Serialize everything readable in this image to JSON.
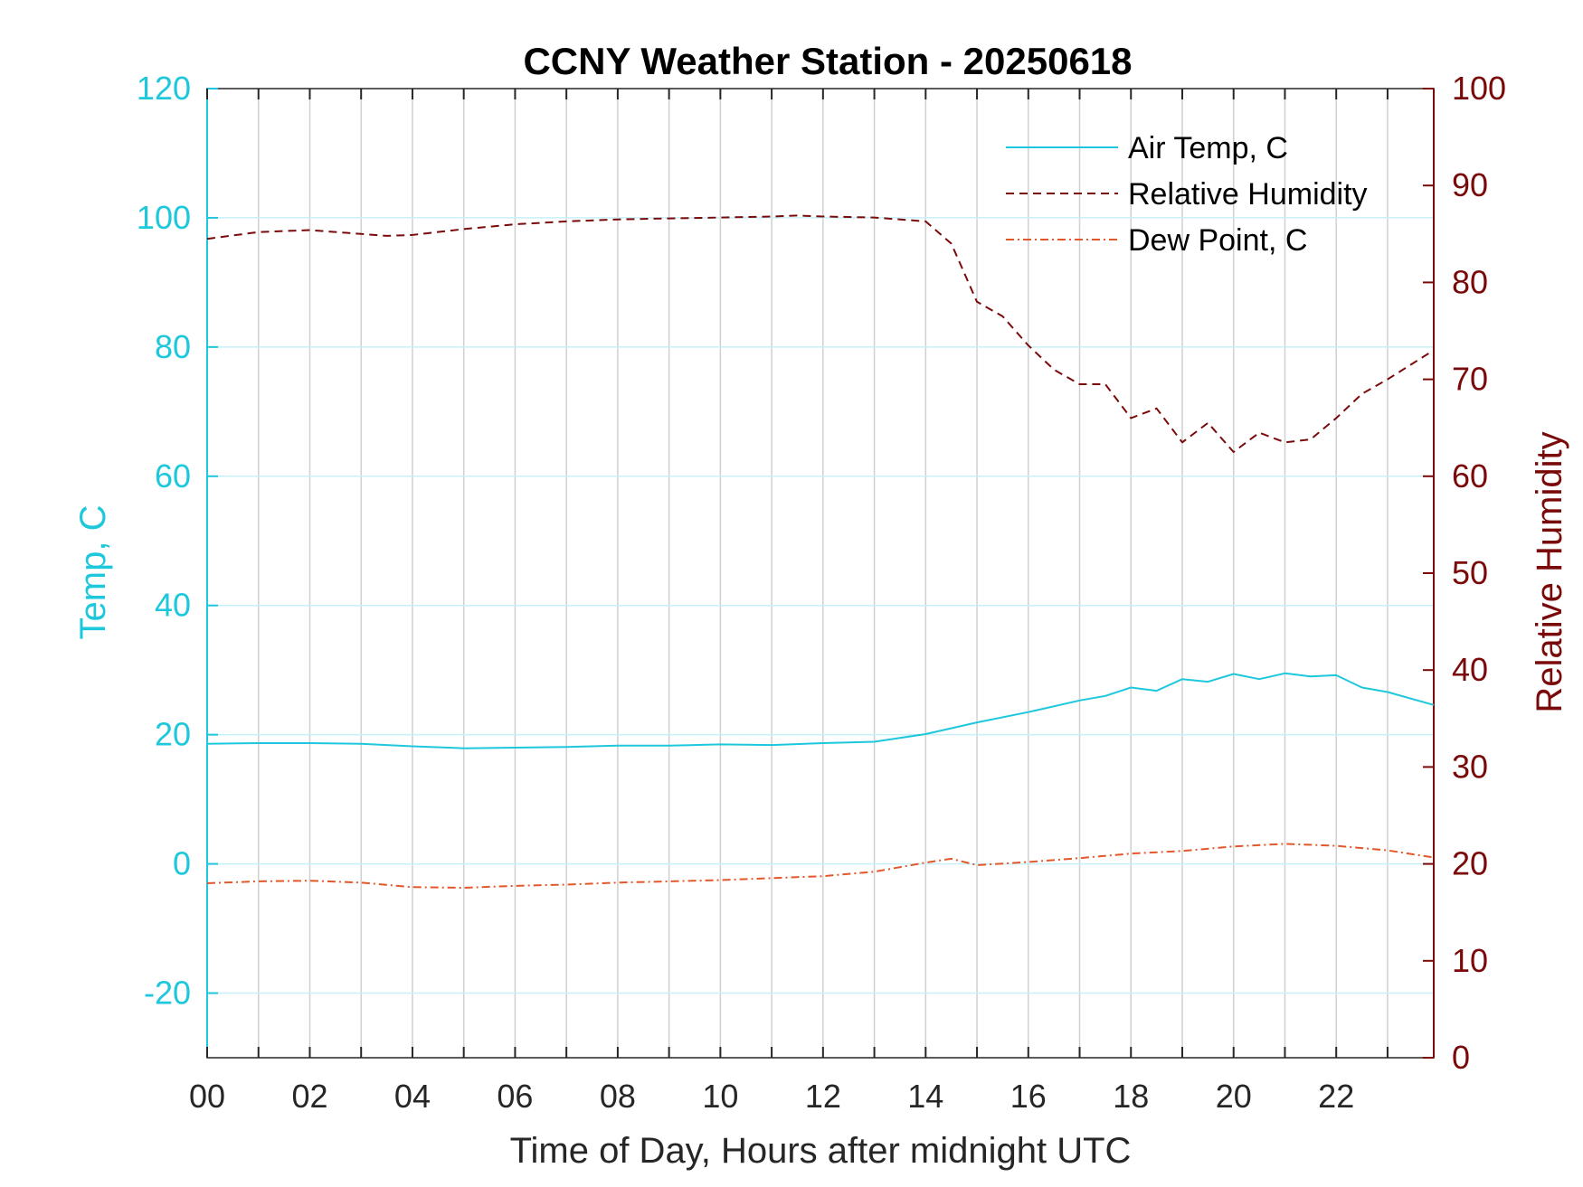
{
  "colors": {
    "temp_axis": "#1ec8dc",
    "rh_axis": "#7a0a0a",
    "air_temp": "#1ec8dc",
    "rh": "#7a0a0a",
    "dew_point": "#e3582b",
    "grid_v": "#d0d0d0",
    "grid_h": "#c8f0f8",
    "box": "#262626"
  },
  "chart_data": {
    "type": "line",
    "title": "CCNY Weather Station - 20250618",
    "xlabel": "Time of Day, Hours after midnight UTC",
    "ylabel_left": "Temp, C",
    "ylabel_right": "Relative Humidity",
    "xlim": [
      0,
      23.9
    ],
    "ylim_left": [
      -30,
      120
    ],
    "ylim_right": [
      0,
      100
    ],
    "x_ticks": [
      0,
      2,
      4,
      6,
      8,
      10,
      12,
      14,
      16,
      18,
      20,
      22
    ],
    "x_tick_labels": [
      "00",
      "02",
      "04",
      "06",
      "08",
      "10",
      "12",
      "14",
      "16",
      "18",
      "20",
      "22"
    ],
    "x_minor_ticks": [
      1,
      3,
      5,
      7,
      9,
      11,
      13,
      15,
      17,
      19,
      21,
      23
    ],
    "y_left_ticks": [
      -20,
      0,
      20,
      40,
      60,
      80,
      100,
      120
    ],
    "y_left_tick_labels": [
      "-20",
      "0",
      "20",
      "40",
      "60",
      "80",
      "100",
      "120"
    ],
    "y_right_ticks": [
      0,
      10,
      20,
      30,
      40,
      50,
      60,
      70,
      80,
      90,
      100
    ],
    "y_right_tick_labels": [
      "0",
      "10",
      "20",
      "30",
      "40",
      "50",
      "60",
      "70",
      "80",
      "90",
      "100"
    ],
    "grid": true,
    "legend_position": "top-right",
    "series": [
      {
        "name": "Air Temp, C",
        "axis": "left",
        "style": "solid",
        "x": [
          0,
          1,
          2,
          3,
          4,
          5,
          6,
          7,
          8,
          9,
          10,
          11,
          12,
          13,
          14,
          15,
          16,
          17,
          17.5,
          18,
          18.5,
          19,
          19.5,
          20,
          20.5,
          21,
          21.5,
          22,
          22.5,
          23,
          23.9
        ],
        "y": [
          18.6,
          18.7,
          18.7,
          18.6,
          18.2,
          17.9,
          18.0,
          18.1,
          18.3,
          18.3,
          18.5,
          18.4,
          18.7,
          18.9,
          20.1,
          21.9,
          23.5,
          25.3,
          26.0,
          27.3,
          26.8,
          28.6,
          28.2,
          29.4,
          28.6,
          29.5,
          29.0,
          29.2,
          27.3,
          26.6,
          24.6
        ]
      },
      {
        "name": "Relative Humidity",
        "axis": "right",
        "style": "dashed",
        "x": [
          0,
          1,
          2,
          3,
          3.5,
          4,
          5,
          6,
          7,
          8,
          9,
          10,
          11,
          11.5,
          12,
          13,
          14,
          14.5,
          15,
          15.5,
          16,
          16.5,
          17,
          17.5,
          18,
          18.5,
          19,
          19.5,
          20,
          20.5,
          21,
          21.5,
          22,
          22.5,
          23,
          23.9
        ],
        "y": [
          84.5,
          85.2,
          85.4,
          85.0,
          84.8,
          84.9,
          85.5,
          86.0,
          86.3,
          86.5,
          86.6,
          86.7,
          86.8,
          86.9,
          86.8,
          86.7,
          86.3,
          84.0,
          78.0,
          76.5,
          73.5,
          71.0,
          69.5,
          69.5,
          66.0,
          67.0,
          63.5,
          65.5,
          62.5,
          64.5,
          63.5,
          63.8,
          66.0,
          68.5,
          70.0,
          73.0
        ]
      },
      {
        "name": "Dew Point, C",
        "axis": "left",
        "style": "dash-dot",
        "x": [
          0,
          1,
          2,
          3,
          4,
          5,
          6,
          7,
          8,
          9,
          10,
          11,
          12,
          13,
          14,
          14.5,
          15,
          16,
          17,
          18,
          19,
          20,
          21,
          22,
          23,
          23.9
        ],
        "y": [
          -3.0,
          -2.7,
          -2.6,
          -2.9,
          -3.6,
          -3.7,
          -3.4,
          -3.2,
          -2.9,
          -2.7,
          -2.5,
          -2.2,
          -1.9,
          -1.2,
          0.2,
          0.8,
          -0.2,
          0.3,
          0.9,
          1.6,
          2.0,
          2.7,
          3.1,
          2.8,
          2.1,
          1.0
        ]
      }
    ]
  }
}
